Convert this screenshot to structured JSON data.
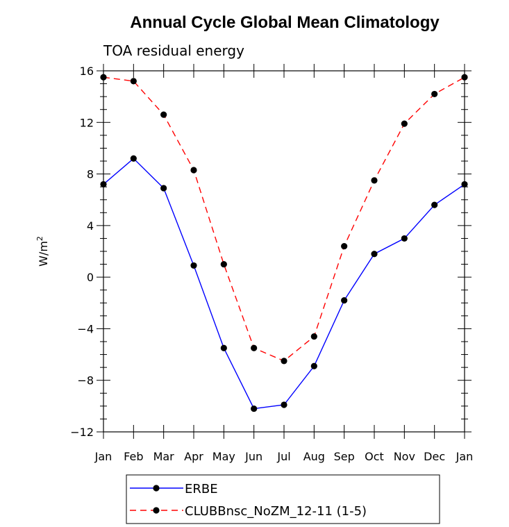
{
  "chart_data": {
    "type": "line",
    "title": "Annual Cycle Global Mean Climatology",
    "subtitle": "TOA residual energy",
    "xlabel": "",
    "ylabel": "W/m",
    "ylabel_superscript": "2",
    "categories": [
      "Jan",
      "Feb",
      "Mar",
      "Apr",
      "May",
      "Jun",
      "Jul",
      "Aug",
      "Sep",
      "Oct",
      "Nov",
      "Dec",
      "Jan"
    ],
    "ylim": [
      -12,
      16
    ],
    "yticks": [
      -12,
      -8,
      -4,
      0,
      4,
      8,
      12,
      16
    ],
    "ytick_labels": [
      "−12",
      "−8",
      "−4",
      "0",
      "4",
      "8",
      "12",
      "16"
    ],
    "grid": false,
    "legend_position": "bottom",
    "series": [
      {
        "name": "ERBE",
        "color": "#0000ff",
        "dash": "solid",
        "marker": "filled-circle",
        "values": [
          7.2,
          9.2,
          6.9,
          0.9,
          -5.5,
          -10.2,
          -9.9,
          -6.9,
          -1.8,
          1.8,
          3.0,
          5.6,
          7.2
        ]
      },
      {
        "name": "CLUBBnsc_NoZM_12-11 (1-5)",
        "color": "#ff0000",
        "dash": "dashed",
        "marker": "filled-circle",
        "values": [
          15.5,
          15.2,
          12.6,
          8.3,
          1.0,
          -5.5,
          -6.5,
          -4.6,
          2.4,
          7.5,
          11.9,
          14.2,
          15.5
        ]
      }
    ]
  }
}
